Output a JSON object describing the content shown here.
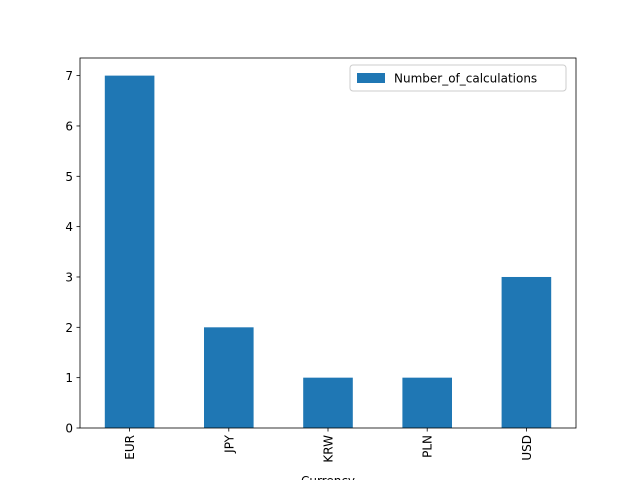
{
  "chart_data": {
    "type": "bar",
    "x_label": "Currency",
    "categories": [
      "EUR",
      "JPY",
      "KRW",
      "PLN",
      "USD"
    ],
    "series": [
      {
        "name": "Number_of_calculations",
        "color": "#1f77b4",
        "values": [
          7,
          2,
          1,
          1,
          3
        ]
      }
    ],
    "ylim": [
      0,
      7.35
    ],
    "yticks": [
      0,
      1,
      2,
      3,
      4,
      5,
      6,
      7
    ],
    "legend": "upper right",
    "grid": false
  }
}
